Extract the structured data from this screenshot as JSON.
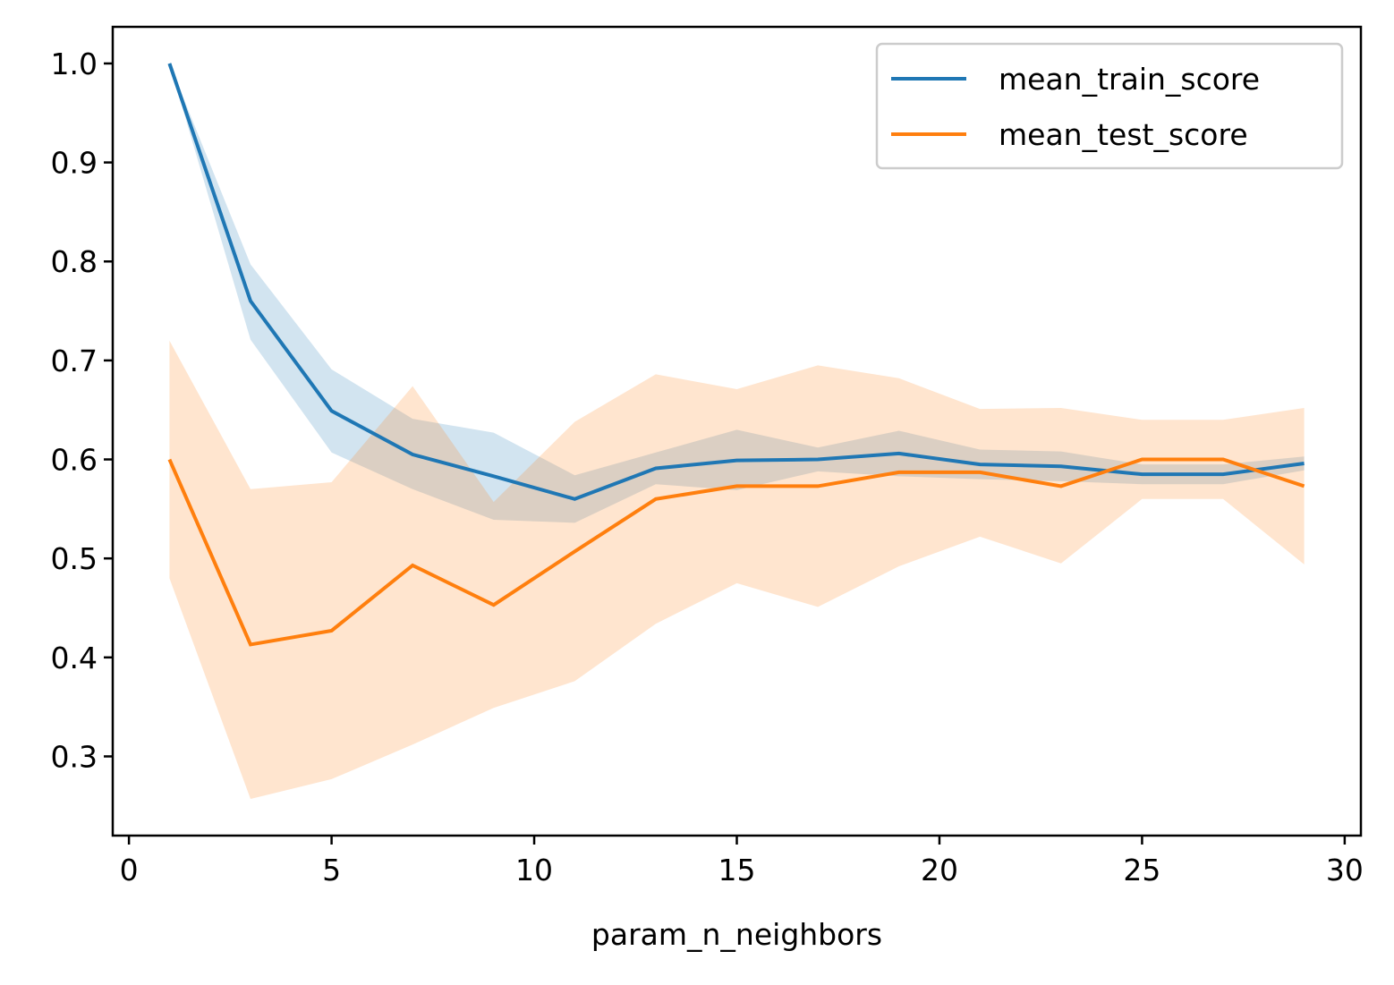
{
  "chart_data": {
    "type": "line",
    "title": "",
    "xlabel": "param_n_neighbors",
    "ylabel": "",
    "xlim": [
      -0.4,
      30.4
    ],
    "ylim": [
      0.22,
      1.037
    ],
    "xticks": [
      0,
      5,
      10,
      15,
      20,
      25,
      30
    ],
    "xtick_labels": [
      "0",
      "5",
      "10",
      "15",
      "20",
      "25",
      "30"
    ],
    "yticks": [
      0.3,
      0.4,
      0.5,
      0.6,
      0.7,
      0.8,
      0.9,
      1.0
    ],
    "ytick_labels": [
      "0.3",
      "0.4",
      "0.5",
      "0.6",
      "0.7",
      "0.8",
      "0.9",
      "1.0"
    ],
    "grid": false,
    "legend_position": "upper right",
    "x": [
      1,
      3,
      5,
      7,
      9,
      11,
      13,
      15,
      17,
      19,
      21,
      23,
      25,
      27,
      29
    ],
    "series": [
      {
        "name": "mean_train_score",
        "color": "#1f77b4",
        "values": [
          1.0,
          0.76,
          0.649,
          0.605,
          0.583,
          0.56,
          0.591,
          0.599,
          0.6,
          0.606,
          0.595,
          0.593,
          0.585,
          0.585,
          0.596
        ],
        "band_lower": [
          1.0,
          0.721,
          0.607,
          0.57,
          0.539,
          0.536,
          0.575,
          0.569,
          0.588,
          0.583,
          0.58,
          0.578,
          0.575,
          0.575,
          0.589
        ],
        "band_upper": [
          1.0,
          0.797,
          0.691,
          0.641,
          0.627,
          0.584,
          0.607,
          0.63,
          0.612,
          0.629,
          0.61,
          0.608,
          0.595,
          0.595,
          0.603
        ]
      },
      {
        "name": "mean_test_score",
        "color": "#ff7f0e",
        "values": [
          0.6,
          0.413,
          0.427,
          0.493,
          0.453,
          0.507,
          0.56,
          0.573,
          0.573,
          0.587,
          0.587,
          0.573,
          0.6,
          0.6,
          0.573
        ],
        "band_lower": [
          0.48,
          0.257,
          0.277,
          0.312,
          0.349,
          0.376,
          0.434,
          0.475,
          0.451,
          0.492,
          0.522,
          0.495,
          0.56,
          0.56,
          0.494
        ],
        "band_upper": [
          0.72,
          0.57,
          0.577,
          0.674,
          0.557,
          0.638,
          0.686,
          0.671,
          0.695,
          0.682,
          0.651,
          0.652,
          0.64,
          0.64,
          0.652
        ]
      }
    ]
  }
}
